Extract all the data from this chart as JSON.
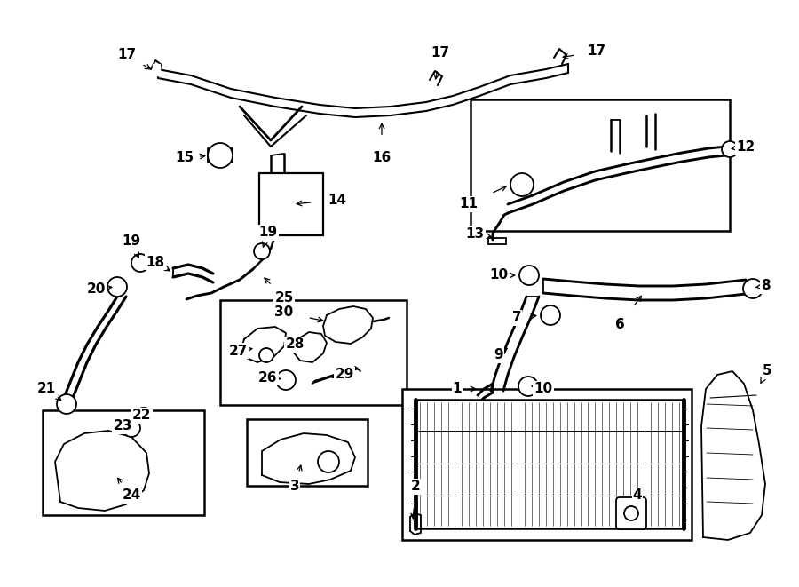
{
  "bg": "#ffffff",
  "lc": "#000000",
  "fig_w": 9.0,
  "fig_h": 6.61,
  "dpi": 100,
  "lw": 1.3,
  "fs": 11
}
